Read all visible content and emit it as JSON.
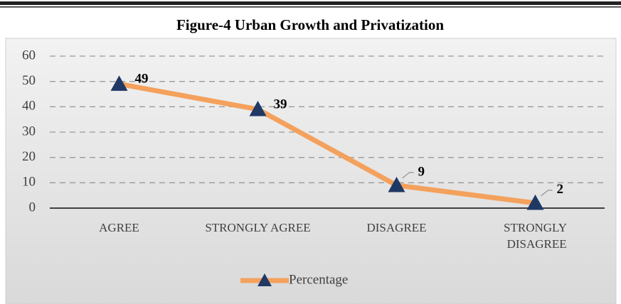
{
  "chart_data": {
    "type": "line",
    "title": "Figure-4 Urban Growth and Privatization",
    "categories": [
      "AGREE",
      "STRONGLY AGREE",
      "DISAGREE",
      "STRONGLY DISAGREE"
    ],
    "series": [
      {
        "name": "Percentage",
        "color": "#f4a15d",
        "marker_color": "#1f3864",
        "values": [
          49,
          39,
          9,
          2
        ]
      }
    ],
    "ylim": [
      0,
      60
    ],
    "yticks": [
      0,
      10,
      20,
      30,
      40,
      50,
      60
    ],
    "grid": true,
    "legend": "bottom"
  }
}
